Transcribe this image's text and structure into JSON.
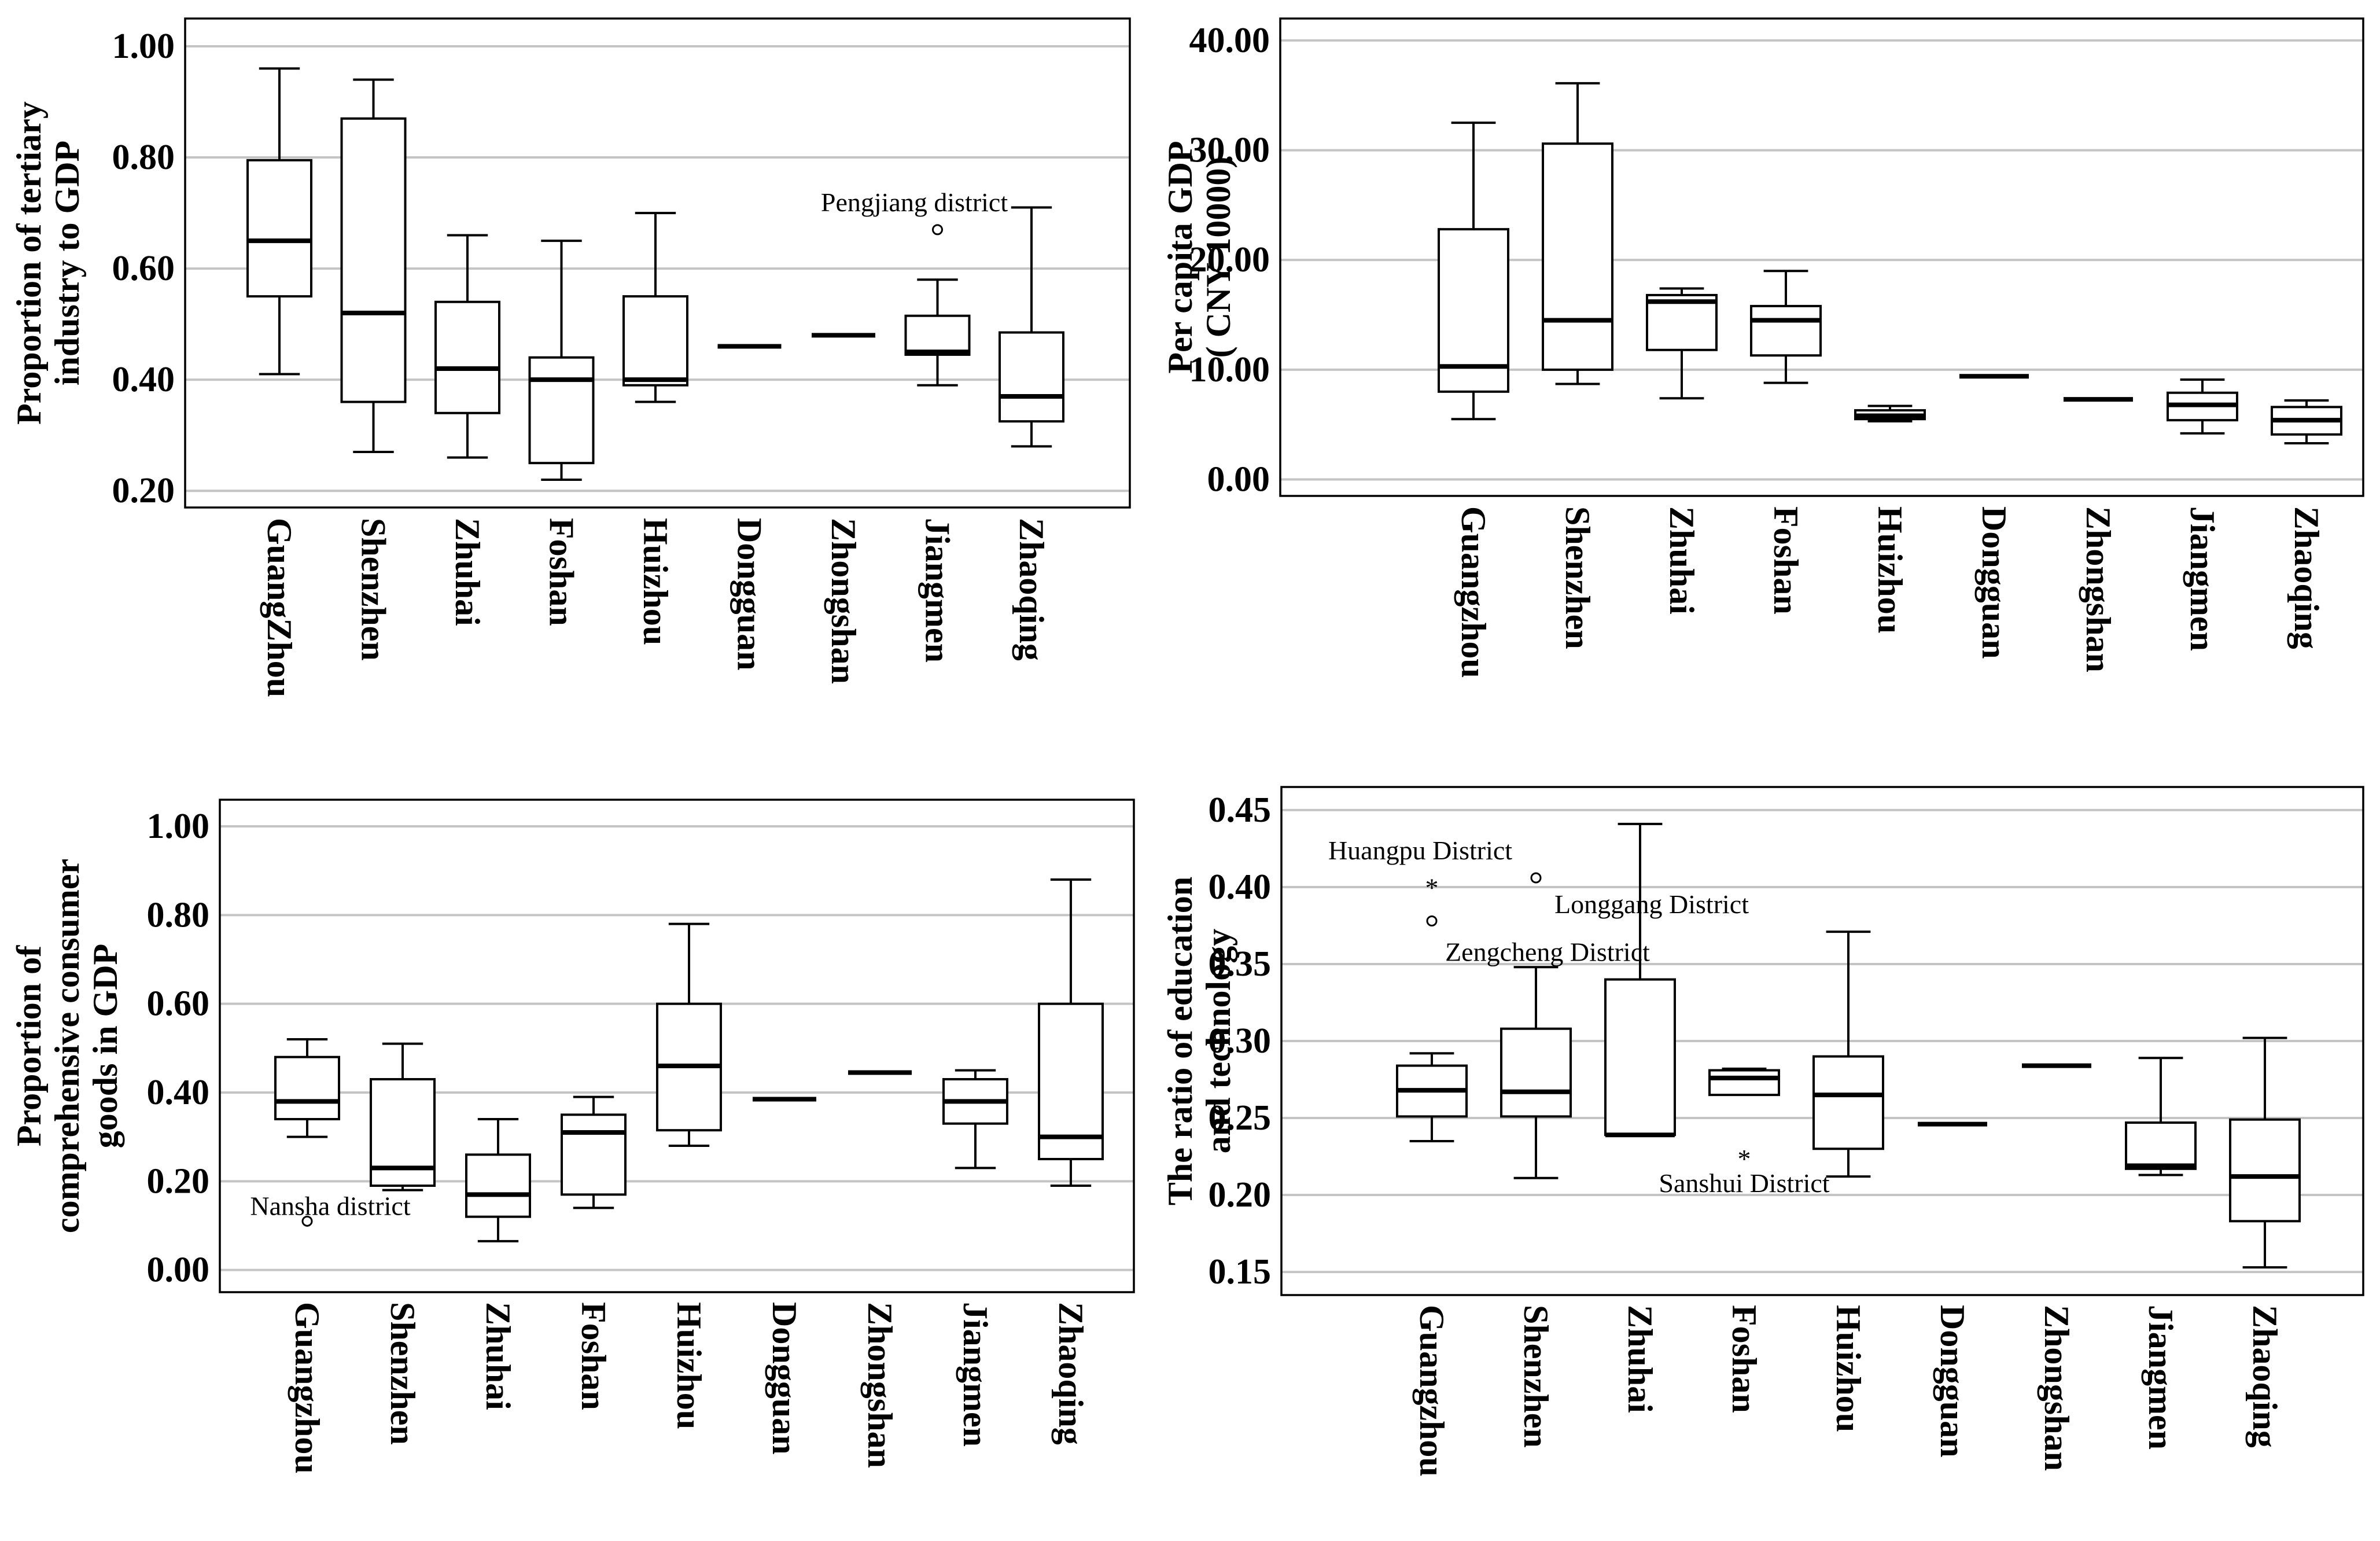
{
  "chart_data": [
    {
      "type": "box",
      "title": "",
      "ylabel": [
        "Proportion of tertiary",
        "industry to GDP"
      ],
      "xlabel": "",
      "ylim": [
        0.17,
        1.05
      ],
      "yticks": [
        0.2,
        0.4,
        0.6,
        0.8,
        1.0
      ],
      "ytick_labels": [
        "0.20",
        "0.40",
        "0.60",
        "0.80",
        "1.00"
      ],
      "grid": true,
      "categories": [
        "GuangZhou",
        "Shenzhen",
        "Zhuhai",
        "Foshan",
        "Huizhou",
        "Dongguan",
        "Zhongshan",
        "Jiangmen",
        "Zhaoqing"
      ],
      "boxes": [
        {
          "min": 0.41,
          "q1": 0.55,
          "median": 0.65,
          "q3": 0.795,
          "max": 0.96
        },
        {
          "min": 0.27,
          "q1": 0.36,
          "median": 0.52,
          "q3": 0.87,
          "max": 0.94
        },
        {
          "min": 0.26,
          "q1": 0.34,
          "median": 0.42,
          "q3": 0.54,
          "max": 0.66
        },
        {
          "min": 0.22,
          "q1": 0.25,
          "median": 0.4,
          "q3": 0.44,
          "max": 0.65
        },
        {
          "min": 0.36,
          "q1": 0.39,
          "median": 0.4,
          "q3": 0.55,
          "max": 0.7
        },
        {
          "min": 0.46,
          "q1": 0.46,
          "median": 0.46,
          "q3": 0.46,
          "max": 0.46
        },
        {
          "min": 0.48,
          "q1": 0.48,
          "median": 0.48,
          "q3": 0.48,
          "max": 0.48
        },
        {
          "min": 0.39,
          "q1": 0.445,
          "median": 0.45,
          "q3": 0.515,
          "max": 0.58
        },
        {
          "min": 0.28,
          "q1": 0.325,
          "median": 0.37,
          "q3": 0.485,
          "max": 0.71
        }
      ],
      "outliers": [
        {
          "category": 7,
          "value": 0.67,
          "marker": "circle"
        }
      ],
      "annotations": [
        {
          "text": "Pengjiang district",
          "category": 7,
          "value": 0.72,
          "offset": -40
        }
      ]
    },
    {
      "type": "box",
      "title": "",
      "ylabel": [
        "Per capita GDP",
        "( CNY 10000)"
      ],
      "xlabel": "",
      "ylim": [
        -1.5,
        42
      ],
      "yticks": [
        0,
        10,
        20,
        30,
        40
      ],
      "ytick_labels": [
        "0.00",
        "10.00",
        "20.00",
        "30.00",
        "40.00"
      ],
      "grid": true,
      "categories": [
        "Guangzhou",
        "Shenzhen",
        "Zhuhai",
        "Foshan",
        "Huizhou",
        "Dongguan",
        "Zhongshan",
        "Jiangmen",
        "Zhaoqing"
      ],
      "boxes": [
        {
          "min": 5.5,
          "q1": 8.0,
          "median": 10.3,
          "q3": 22.8,
          "max": 32.5
        },
        {
          "min": 8.7,
          "q1": 10.0,
          "median": 14.5,
          "q3": 30.6,
          "max": 36.1
        },
        {
          "min": 7.4,
          "q1": 11.8,
          "median": 16.2,
          "q3": 16.8,
          "max": 17.4
        },
        {
          "min": 8.8,
          "q1": 11.3,
          "median": 14.5,
          "q3": 15.8,
          "max": 19.0
        },
        {
          "min": 5.3,
          "q1": 5.5,
          "median": 5.8,
          "q3": 6.3,
          "max": 6.7
        },
        {
          "min": 9.4,
          "q1": 9.4,
          "median": 9.4,
          "q3": 9.4,
          "max": 9.4
        },
        {
          "min": 7.3,
          "q1": 7.3,
          "median": 7.3,
          "q3": 7.3,
          "max": 7.3
        },
        {
          "min": 4.2,
          "q1": 5.4,
          "median": 6.8,
          "q3": 7.9,
          "max": 9.1
        },
        {
          "min": 3.3,
          "q1": 4.1,
          "median": 5.4,
          "q3": 6.6,
          "max": 7.2
        }
      ],
      "outliers": [],
      "annotations": []
    },
    {
      "type": "box",
      "title": "",
      "ylabel": [
        "Proportion of",
        "comprehensive consumer",
        "goods in GDP"
      ],
      "xlabel": "",
      "ylim": [
        -0.05,
        1.06
      ],
      "yticks": [
        0.0,
        0.2,
        0.4,
        0.6,
        0.8,
        1.0
      ],
      "ytick_labels": [
        "0.00",
        "0.20",
        "0.40",
        "0.60",
        "0.80",
        "1.00"
      ],
      "grid": true,
      "categories": [
        "Guangzhou",
        "Shenzhen",
        "Zhuhai",
        "Foshan",
        "Huizhou",
        "Dongguan",
        "Zhongshan",
        "Jiangmen",
        "Zhaoqing"
      ],
      "boxes": [
        {
          "min": 0.3,
          "q1": 0.34,
          "median": 0.38,
          "q3": 0.48,
          "max": 0.52
        },
        {
          "min": 0.18,
          "q1": 0.19,
          "median": 0.23,
          "q3": 0.43,
          "max": 0.51
        },
        {
          "min": 0.065,
          "q1": 0.12,
          "median": 0.17,
          "q3": 0.26,
          "max": 0.34
        },
        {
          "min": 0.14,
          "q1": 0.17,
          "median": 0.31,
          "q3": 0.35,
          "max": 0.39
        },
        {
          "min": 0.28,
          "q1": 0.315,
          "median": 0.46,
          "q3": 0.6,
          "max": 0.78
        },
        {
          "min": 0.385,
          "q1": 0.385,
          "median": 0.385,
          "q3": 0.385,
          "max": 0.385
        },
        {
          "min": 0.445,
          "q1": 0.445,
          "median": 0.445,
          "q3": 0.445,
          "max": 0.445
        },
        {
          "min": 0.23,
          "q1": 0.33,
          "median": 0.38,
          "q3": 0.43,
          "max": 0.45
        },
        {
          "min": 0.19,
          "q1": 0.25,
          "median": 0.3,
          "q3": 0.6,
          "max": 0.88
        }
      ],
      "outliers": [
        {
          "category": 0,
          "value": 0.11,
          "marker": "circle"
        }
      ],
      "annotations": [
        {
          "text": "Nansha district",
          "category": 0,
          "value": 0.145,
          "offset": 40
        }
      ]
    },
    {
      "type": "box",
      "title": "",
      "ylabel": [
        "The ratio of education",
        "and technology"
      ],
      "xlabel": "",
      "ylim": [
        0.135,
        0.465
      ],
      "yticks": [
        0.15,
        0.2,
        0.25,
        0.3,
        0.35,
        0.4,
        0.45
      ],
      "ytick_labels": [
        "0.15",
        "0.20",
        "0.25",
        "0.30",
        "0.35",
        "0.40",
        "0.45"
      ],
      "grid": true,
      "categories": [
        "Guangzhou",
        "Shenzhen",
        "Zhuhai",
        "Foshan",
        "Huizhou",
        "Dongguan",
        "Zhongshan",
        "Jiangmen",
        "Zhaoqing"
      ],
      "boxes": [
        {
          "min": 0.235,
          "q1": 0.251,
          "median": 0.268,
          "q3": 0.284,
          "max": 0.292
        },
        {
          "min": 0.211,
          "q1": 0.251,
          "median": 0.267,
          "q3": 0.308,
          "max": 0.348
        },
        {
          "min": 0.239,
          "q1": 0.239,
          "median": 0.239,
          "q3": 0.34,
          "max": 0.441
        },
        {
          "min": 0.265,
          "q1": 0.265,
          "median": 0.276,
          "q3": 0.281,
          "max": 0.282
        },
        {
          "min": 0.212,
          "q1": 0.23,
          "median": 0.265,
          "q3": 0.29,
          "max": 0.371
        },
        {
          "min": 0.246,
          "q1": 0.246,
          "median": 0.246,
          "q3": 0.246,
          "max": 0.246
        },
        {
          "min": 0.284,
          "q1": 0.284,
          "median": 0.284,
          "q3": 0.284,
          "max": 0.284
        },
        {
          "min": 0.213,
          "q1": 0.217,
          "median": 0.219,
          "q3": 0.247,
          "max": 0.289
        },
        {
          "min": 0.153,
          "q1": 0.183,
          "median": 0.212,
          "q3": 0.249,
          "max": 0.302
        }
      ],
      "outliers": [
        {
          "category": 0,
          "value": 0.399,
          "marker": "star"
        },
        {
          "category": 0,
          "value": 0.378,
          "marker": "circle"
        },
        {
          "category": 1,
          "value": 0.406,
          "marker": "circle"
        },
        {
          "category": 3,
          "value": 0.223,
          "marker": "star"
        }
      ],
      "annotations": [
        {
          "text": "Huangpu District",
          "category": 0,
          "value": 0.424,
          "offset": -20
        },
        {
          "text": "Longgang District",
          "category": 1,
          "value": 0.389,
          "offset": 200
        },
        {
          "text": "Zengcheng District",
          "category": 0,
          "value": 0.358,
          "offset": 200
        },
        {
          "text": "Sanshui District",
          "category": 3,
          "value": 0.208,
          "offset": 0
        }
      ]
    }
  ]
}
